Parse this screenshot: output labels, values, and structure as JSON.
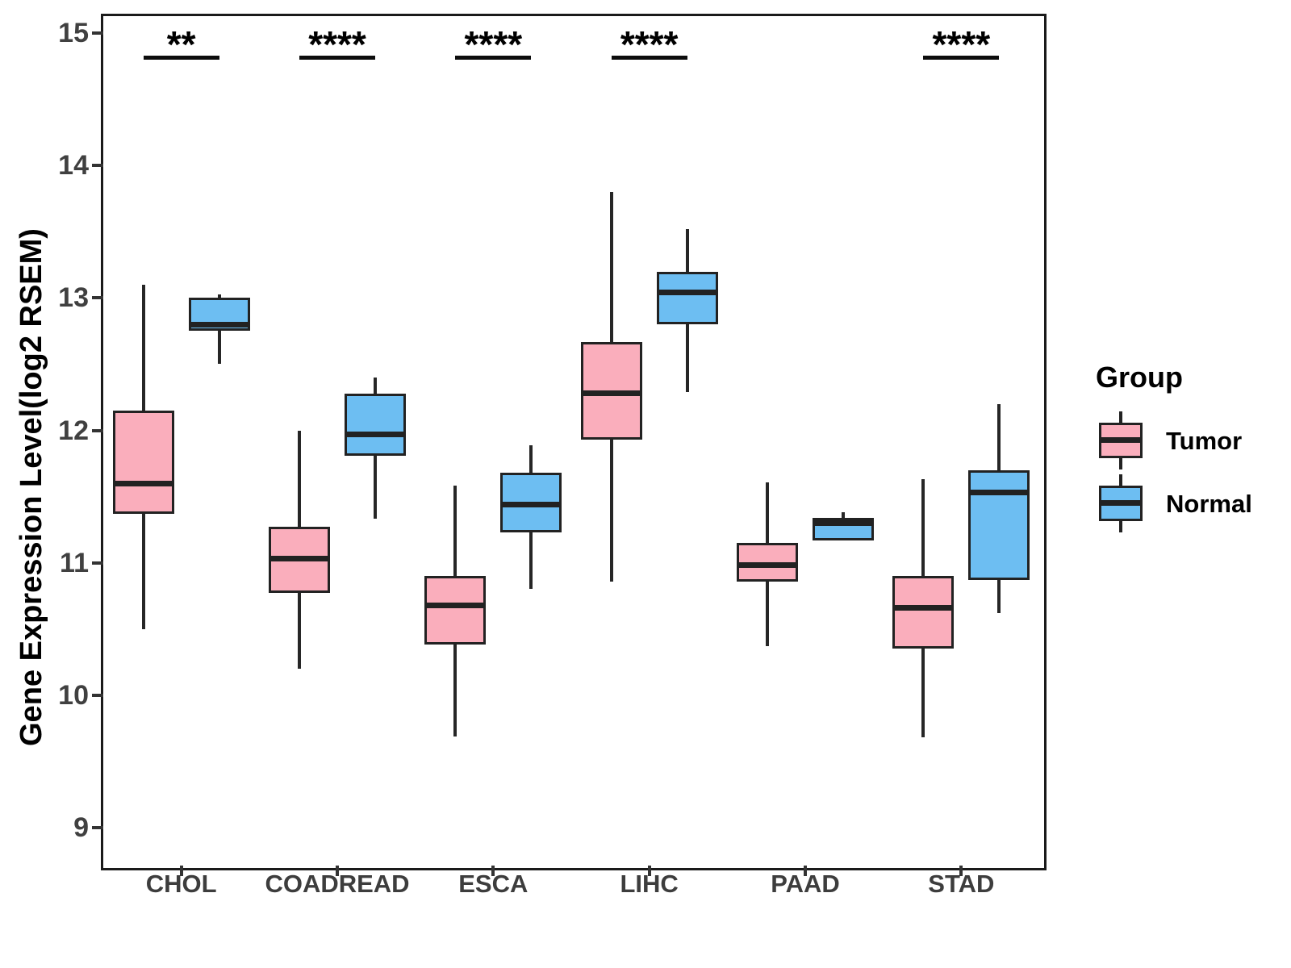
{
  "chart_data": {
    "type": "boxplot",
    "title": "",
    "xlabel": "",
    "ylabel": "Gene Expression Level(log2 RSEM)",
    "ylim": [
      8.73,
      15.13
    ],
    "yticks": [
      9,
      10,
      11,
      12,
      13,
      14,
      15
    ],
    "categories": [
      "CHOL",
      "COADREAD",
      "ESCA",
      "LIHC",
      "PAAD",
      "STAD"
    ],
    "grid": "off",
    "legend_position": "right",
    "significance_y": 14.83,
    "significance_labels": [
      "**",
      "****",
      "****",
      "****",
      "",
      "****"
    ],
    "legend": {
      "title": "Group",
      "entries": [
        {
          "label": "Tumor",
          "color": "#FAAEBC"
        },
        {
          "label": "Normal",
          "color": "#6DBEF2"
        }
      ]
    },
    "series": [
      {
        "name": "Tumor",
        "color": "#FAAEBC",
        "boxes": [
          {
            "category": "CHOL",
            "min": 10.5,
            "q1": 11.37,
            "median": 11.6,
            "q3": 12.15,
            "max": 13.1
          },
          {
            "category": "COADREAD",
            "min": 10.2,
            "q1": 10.77,
            "median": 11.03,
            "q3": 11.27,
            "max": 12.0
          },
          {
            "category": "ESCA",
            "min": 9.69,
            "q1": 10.38,
            "median": 10.68,
            "q3": 10.9,
            "max": 11.58
          },
          {
            "category": "LIHC",
            "min": 10.86,
            "q1": 11.93,
            "median": 12.28,
            "q3": 12.67,
            "max": 13.8
          },
          {
            "category": "PAAD",
            "min": 10.37,
            "q1": 10.86,
            "median": 10.98,
            "q3": 11.15,
            "max": 11.61
          },
          {
            "category": "STAD",
            "min": 9.68,
            "q1": 10.35,
            "median": 10.66,
            "q3": 10.9,
            "max": 11.63
          }
        ]
      },
      {
        "name": "Normal",
        "color": "#6DBEF2",
        "boxes": [
          {
            "category": "CHOL",
            "min": 12.5,
            "q1": 12.75,
            "median": 12.8,
            "q3": 13.0,
            "max": 13.03
          },
          {
            "category": "COADREAD",
            "min": 11.33,
            "q1": 11.81,
            "median": 11.97,
            "q3": 12.28,
            "max": 12.4
          },
          {
            "category": "ESCA",
            "min": 10.8,
            "q1": 11.23,
            "median": 11.44,
            "q3": 11.68,
            "max": 11.89
          },
          {
            "category": "LIHC",
            "min": 12.29,
            "q1": 12.8,
            "median": 13.04,
            "q3": 13.2,
            "max": 13.52
          },
          {
            "category": "PAAD",
            "min": 11.17,
            "q1": 11.17,
            "median": 11.3,
            "q3": 11.34,
            "max": 11.38
          },
          {
            "category": "STAD",
            "min": 10.62,
            "q1": 10.87,
            "median": 11.53,
            "q3": 11.7,
            "max": 12.2
          }
        ]
      }
    ]
  }
}
